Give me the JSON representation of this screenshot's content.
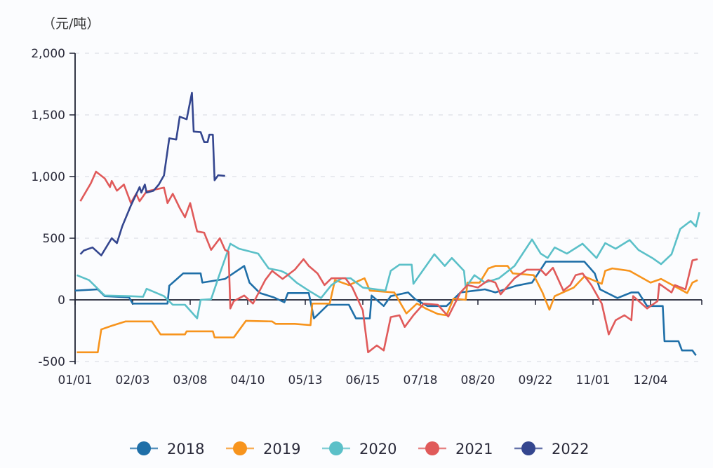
{
  "chart_data": {
    "type": "line",
    "title": "",
    "unit_label": "（元/吨）",
    "xlabel": "",
    "ylabel": "",
    "ylim": [
      -500,
      2000
    ],
    "yticks": [
      "2,000",
      "1,500",
      "1,000",
      "500",
      "0",
      "-500"
    ],
    "ytick_values": [
      2000,
      1500,
      1000,
      500,
      0,
      -500
    ],
    "xticks": [
      "01/01",
      "02/03",
      "03/08",
      "04/10",
      "05/13",
      "06/15",
      "07/18",
      "08/20",
      "09/22",
      "11/01",
      "12/04"
    ],
    "grid": "horizontal dashed",
    "legend_position": "bottom",
    "series": [
      {
        "name": "2018",
        "color": "#1f6fa8",
        "points": [
          [
            "01/01",
            75
          ],
          [
            "01/14",
            85
          ],
          [
            "01/18",
            30
          ],
          [
            "02/01",
            20
          ],
          [
            "02/03",
            -30
          ],
          [
            "02/23",
            -30
          ],
          [
            "02/24",
            115
          ],
          [
            "03/04",
            215
          ],
          [
            "03/14",
            215
          ],
          [
            "03/15",
            140
          ],
          [
            "03/28",
            170
          ],
          [
            "04/08",
            275
          ],
          [
            "04/11",
            140
          ],
          [
            "04/17",
            55
          ],
          [
            "04/25",
            20
          ],
          [
            "05/01",
            -20
          ],
          [
            "05/03",
            55
          ],
          [
            "05/15",
            55
          ],
          [
            "05/18",
            -150
          ],
          [
            "05/26",
            -40
          ],
          [
            "06/07",
            -40
          ],
          [
            "06/11",
            -150
          ],
          [
            "06/19",
            -150
          ],
          [
            "06/20",
            35
          ],
          [
            "06/27",
            -50
          ],
          [
            "07/01",
            30
          ],
          [
            "07/11",
            60
          ],
          [
            "07/15",
            5
          ],
          [
            "07/22",
            -50
          ],
          [
            "08/02",
            -50
          ],
          [
            "08/10",
            60
          ],
          [
            "08/24",
            85
          ],
          [
            "08/30",
            60
          ],
          [
            "09/11",
            115
          ],
          [
            "09/20",
            140
          ],
          [
            "09/28",
            310
          ],
          [
            "10/20",
            310
          ],
          [
            "10/26",
            215
          ],
          [
            "10/29",
            85
          ],
          [
            "11/08",
            15
          ],
          [
            "11/16",
            60
          ],
          [
            "11/20",
            60
          ],
          [
            "11/25",
            -50
          ],
          [
            "12/04",
            -50
          ],
          [
            "12/05",
            -335
          ],
          [
            "12/13",
            -335
          ],
          [
            "12/15",
            -410
          ],
          [
            "12/21",
            -410
          ],
          [
            "12/23",
            -450
          ]
        ]
      },
      {
        "name": "2019",
        "color": "#f7941d",
        "points": [
          [
            "01/02",
            -425
          ],
          [
            "01/14",
            -425
          ],
          [
            "01/16",
            -240
          ],
          [
            "01/22",
            -210
          ],
          [
            "01/30",
            -175
          ],
          [
            "02/14",
            -175
          ],
          [
            "02/19",
            -280
          ],
          [
            "03/05",
            -280
          ],
          [
            "03/06",
            -255
          ],
          [
            "03/21",
            -255
          ],
          [
            "03/22",
            -305
          ],
          [
            "04/02",
            -305
          ],
          [
            "04/09",
            -170
          ],
          [
            "04/24",
            -175
          ],
          [
            "04/26",
            -195
          ],
          [
            "05/07",
            -195
          ],
          [
            "05/16",
            -205
          ],
          [
            "05/17",
            -30
          ],
          [
            "05/27",
            -30
          ],
          [
            "05/30",
            160
          ],
          [
            "06/07",
            120
          ],
          [
            "06/16",
            175
          ],
          [
            "06/19",
            75
          ],
          [
            "07/03",
            60
          ],
          [
            "07/10",
            -110
          ],
          [
            "07/16",
            -30
          ],
          [
            "07/21",
            -70
          ],
          [
            "07/28",
            -115
          ],
          [
            "08/02",
            -125
          ],
          [
            "08/06",
            10
          ],
          [
            "08/13",
            0
          ],
          [
            "08/14",
            140
          ],
          [
            "08/21",
            140
          ],
          [
            "08/26",
            255
          ],
          [
            "08/30",
            275
          ],
          [
            "09/06",
            275
          ],
          [
            "09/09",
            215
          ],
          [
            "09/21",
            200
          ],
          [
            "09/26",
            60
          ],
          [
            "09/30",
            -80
          ],
          [
            "10/03",
            30
          ],
          [
            "10/14",
            100
          ],
          [
            "10/20",
            190
          ],
          [
            "10/30",
            130
          ],
          [
            "11/01",
            235
          ],
          [
            "11/05",
            255
          ],
          [
            "11/15",
            235
          ],
          [
            "11/27",
            140
          ],
          [
            "12/03",
            170
          ],
          [
            "12/18",
            55
          ],
          [
            "12/21",
            140
          ],
          [
            "12/24",
            160
          ]
        ]
      },
      {
        "name": "2020",
        "color": "#5bc0c8",
        "points": [
          [
            "01/02",
            200
          ],
          [
            "01/09",
            160
          ],
          [
            "01/18",
            35
          ],
          [
            "02/01",
            30
          ],
          [
            "02/09",
            25
          ],
          [
            "02/11",
            90
          ],
          [
            "02/21",
            30
          ],
          [
            "02/26",
            -40
          ],
          [
            "03/05",
            -40
          ],
          [
            "03/12",
            -150
          ],
          [
            "03/14",
            0
          ],
          [
            "03/20",
            5
          ],
          [
            "03/25",
            215
          ],
          [
            "03/31",
            455
          ],
          [
            "04/05",
            415
          ],
          [
            "04/16",
            375
          ],
          [
            "04/22",
            255
          ],
          [
            "04/29",
            235
          ],
          [
            "05/02",
            215
          ],
          [
            "05/08",
            140
          ],
          [
            "05/15",
            75
          ],
          [
            "05/22",
            15
          ],
          [
            "05/28",
            120
          ],
          [
            "06/03",
            175
          ],
          [
            "06/08",
            175
          ],
          [
            "06/15",
            100
          ],
          [
            "06/28",
            75
          ],
          [
            "07/01",
            235
          ],
          [
            "07/06",
            285
          ],
          [
            "07/13",
            285
          ],
          [
            "07/14",
            130
          ],
          [
            "07/26",
            370
          ],
          [
            "08/01",
            275
          ],
          [
            "08/05",
            340
          ],
          [
            "08/12",
            235
          ],
          [
            "08/13",
            100
          ],
          [
            "08/18",
            200
          ],
          [
            "08/24",
            140
          ],
          [
            "09/01",
            175
          ],
          [
            "09/10",
            275
          ],
          [
            "09/20",
            490
          ],
          [
            "09/25",
            375
          ],
          [
            "09/29",
            340
          ],
          [
            "10/03",
            425
          ],
          [
            "10/10",
            375
          ],
          [
            "10/19",
            455
          ],
          [
            "10/27",
            340
          ],
          [
            "11/01",
            460
          ],
          [
            "11/07",
            415
          ],
          [
            "11/15",
            485
          ],
          [
            "11/20",
            405
          ],
          [
            "11/28",
            340
          ],
          [
            "12/03",
            290
          ],
          [
            "12/09",
            370
          ],
          [
            "12/14",
            575
          ],
          [
            "12/20",
            640
          ],
          [
            "12/23",
            595
          ],
          [
            "12/25",
            710
          ]
        ]
      },
      {
        "name": "2021",
        "color": "#e05a5a",
        "points": [
          [
            "01/04",
            800
          ],
          [
            "01/10",
            945
          ],
          [
            "01/13",
            1040
          ],
          [
            "01/18",
            985
          ],
          [
            "01/21",
            915
          ],
          [
            "01/22",
            965
          ],
          [
            "01/25",
            885
          ],
          [
            "01/29",
            935
          ],
          [
            "02/02",
            785
          ],
          [
            "02/05",
            860
          ],
          [
            "02/07",
            800
          ],
          [
            "02/11",
            880
          ],
          [
            "02/21",
            910
          ],
          [
            "02/23",
            785
          ],
          [
            "02/26",
            860
          ],
          [
            "03/02",
            745
          ],
          [
            "03/05",
            670
          ],
          [
            "03/08",
            785
          ],
          [
            "03/12",
            555
          ],
          [
            "03/16",
            545
          ],
          [
            "03/20",
            405
          ],
          [
            "03/25",
            500
          ],
          [
            "03/28",
            405
          ],
          [
            "03/30",
            390
          ],
          [
            "03/31",
            -70
          ],
          [
            "04/02",
            -10
          ],
          [
            "04/08",
            35
          ],
          [
            "04/13",
            -30
          ],
          [
            "04/20",
            160
          ],
          [
            "04/24",
            235
          ],
          [
            "04/30",
            170
          ],
          [
            "05/07",
            245
          ],
          [
            "05/12",
            330
          ],
          [
            "05/15",
            275
          ],
          [
            "05/20",
            215
          ],
          [
            "05/24",
            120
          ],
          [
            "05/28",
            175
          ],
          [
            "06/05",
            175
          ],
          [
            "06/09",
            100
          ],
          [
            "06/15",
            -85
          ],
          [
            "06/18",
            -425
          ],
          [
            "06/23",
            -370
          ],
          [
            "06/27",
            -410
          ],
          [
            "07/01",
            -140
          ],
          [
            "07/06",
            -125
          ],
          [
            "07/09",
            -220
          ],
          [
            "07/14",
            -125
          ],
          [
            "07/20",
            -30
          ],
          [
            "07/28",
            -40
          ],
          [
            "08/03",
            -135
          ],
          [
            "08/10",
            60
          ],
          [
            "08/14",
            120
          ],
          [
            "08/20",
            100
          ],
          [
            "08/26",
            160
          ],
          [
            "08/30",
            140
          ],
          [
            "09/02",
            45
          ],
          [
            "09/10",
            175
          ],
          [
            "09/17",
            245
          ],
          [
            "09/25",
            245
          ],
          [
            "09/28",
            200
          ],
          [
            "10/02",
            260
          ],
          [
            "10/08",
            75
          ],
          [
            "10/12",
            120
          ],
          [
            "10/15",
            200
          ],
          [
            "10/19",
            215
          ],
          [
            "10/24",
            120
          ],
          [
            "10/30",
            -30
          ],
          [
            "11/03",
            -280
          ],
          [
            "11/07",
            -165
          ],
          [
            "11/12",
            -125
          ],
          [
            "11/16",
            -165
          ],
          [
            "11/17",
            30
          ],
          [
            "11/25",
            -70
          ],
          [
            "12/01",
            -10
          ],
          [
            "12/02",
            130
          ],
          [
            "12/09",
            60
          ],
          [
            "12/11",
            120
          ],
          [
            "12/17",
            85
          ],
          [
            "12/21",
            320
          ],
          [
            "12/24",
            330
          ]
        ]
      },
      {
        "name": "2022",
        "color": "#34468f",
        "points": [
          [
            "01/04",
            370
          ],
          [
            "01/06",
            400
          ],
          [
            "01/11",
            425
          ],
          [
            "01/16",
            360
          ],
          [
            "01/22",
            500
          ],
          [
            "01/25",
            460
          ],
          [
            "01/28",
            595
          ],
          [
            "02/02",
            765
          ],
          [
            "02/07",
            915
          ],
          [
            "02/08",
            870
          ],
          [
            "02/10",
            935
          ],
          [
            "02/11",
            870
          ],
          [
            "02/15",
            885
          ],
          [
            "02/18",
            935
          ],
          [
            "02/21",
            1010
          ],
          [
            "02/24",
            1310
          ],
          [
            "02/28",
            1300
          ],
          [
            "03/02",
            1485
          ],
          [
            "03/06",
            1465
          ],
          [
            "03/09",
            1680
          ],
          [
            "03/10",
            1365
          ],
          [
            "03/14",
            1360
          ],
          [
            "03/16",
            1280
          ],
          [
            "03/18",
            1280
          ],
          [
            "03/19",
            1340
          ],
          [
            "03/21",
            1340
          ],
          [
            "03/22",
            970
          ],
          [
            "03/24",
            1010
          ],
          [
            "03/28",
            1005
          ]
        ]
      }
    ]
  }
}
